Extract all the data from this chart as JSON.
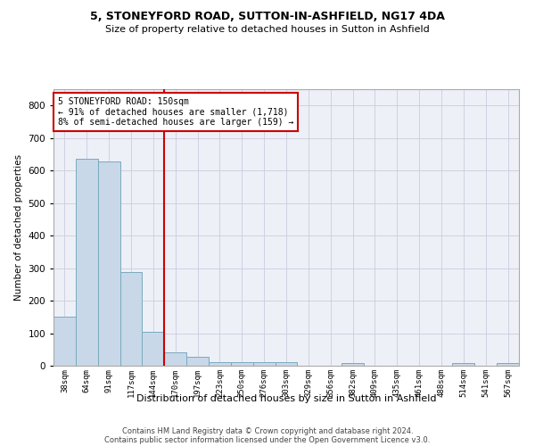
{
  "title1": "5, STONEYFORD ROAD, SUTTON-IN-ASHFIELD, NG17 4DA",
  "title2": "Size of property relative to detached houses in Sutton in Ashfield",
  "xlabel": "Distribution of detached houses by size in Sutton in Ashfield",
  "ylabel": "Number of detached properties",
  "footer1": "Contains HM Land Registry data © Crown copyright and database right 2024.",
  "footer2": "Contains public sector information licensed under the Open Government Licence v3.0.",
  "bar_labels": [
    "38sqm",
    "64sqm",
    "91sqm",
    "117sqm",
    "144sqm",
    "170sqm",
    "197sqm",
    "223sqm",
    "250sqm",
    "276sqm",
    "303sqm",
    "329sqm",
    "356sqm",
    "382sqm",
    "409sqm",
    "435sqm",
    "461sqm",
    "488sqm",
    "514sqm",
    "541sqm",
    "567sqm"
  ],
  "bar_values": [
    150,
    635,
    628,
    289,
    103,
    42,
    28,
    10,
    12,
    10,
    10,
    0,
    0,
    8,
    0,
    0,
    0,
    0,
    8,
    0,
    8
  ],
  "bar_color": "#c8d8e8",
  "bar_edge_color": "#7aaabf",
  "grid_color": "#ccccdd",
  "bg_color": "#eef0f8",
  "annotation_line1": "5 STONEYFORD ROAD: 150sqm",
  "annotation_line2": "← 91% of detached houses are smaller (1,718)",
  "annotation_line3": "8% of semi-detached houses are larger (159) →",
  "vline_x_index": 4.5,
  "vline_color": "#cc0000",
  "annotation_box_color": "#cc0000",
  "ylim": [
    0,
    850
  ],
  "yticks": [
    0,
    100,
    200,
    300,
    400,
    500,
    600,
    700,
    800
  ]
}
